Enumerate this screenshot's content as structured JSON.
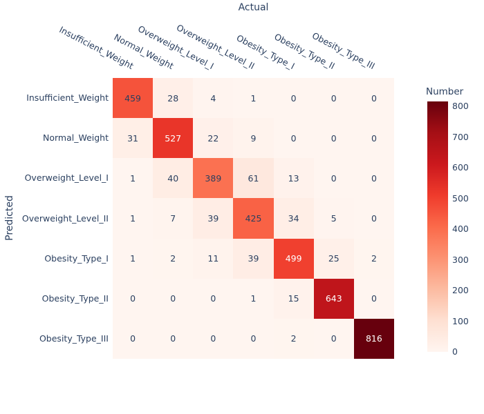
{
  "chart_data": {
    "type": "heatmap",
    "x_axis_title": "Actual",
    "y_axis_title": "Predicted",
    "categories": [
      "Insufficient_Weight",
      "Normal_Weight",
      "Overweight_Level_I",
      "Overweight_Level_II",
      "Obesity_Type_I",
      "Obesity_Type_II",
      "Obesity_Type_III"
    ],
    "rows": [
      {
        "label": "Insufficient_Weight",
        "values": [
          459,
          28,
          4,
          1,
          0,
          0,
          0
        ]
      },
      {
        "label": "Normal_Weight",
        "values": [
          31,
          527,
          22,
          9,
          0,
          0,
          0
        ]
      },
      {
        "label": "Overweight_Level_I",
        "values": [
          1,
          40,
          389,
          61,
          13,
          0,
          0
        ]
      },
      {
        "label": "Overweight_Level_II",
        "values": [
          1,
          7,
          39,
          425,
          34,
          5,
          0
        ]
      },
      {
        "label": "Obesity_Type_I",
        "values": [
          1,
          2,
          11,
          39,
          499,
          25,
          2
        ]
      },
      {
        "label": "Obesity_Type_II",
        "values": [
          0,
          0,
          0,
          1,
          15,
          643,
          0
        ]
      },
      {
        "label": "Obesity_Type_III",
        "values": [
          0,
          0,
          0,
          0,
          2,
          0,
          816
        ]
      }
    ],
    "colorbar": {
      "title": "Number",
      "min": 0,
      "max": 816,
      "ticks": [
        0,
        100,
        200,
        300,
        400,
        500,
        600,
        700,
        800
      ]
    },
    "colorscale_name": "Reds",
    "colorscale": [
      [
        0.0,
        "rgb(255,245,240)"
      ],
      [
        0.125,
        "rgb(254,224,210)"
      ],
      [
        0.25,
        "rgb(252,187,161)"
      ],
      [
        0.375,
        "rgb(252,146,114)"
      ],
      [
        0.5,
        "rgb(251,106,74)"
      ],
      [
        0.625,
        "rgb(239,59,44)"
      ],
      [
        0.75,
        "rgb(203,24,29)"
      ],
      [
        0.875,
        "rgb(165,15,21)"
      ],
      [
        1.0,
        "rgb(103,0,13)"
      ]
    ],
    "text_color_dark": "#2a3f5f",
    "text_color_light": "#ffffff"
  }
}
